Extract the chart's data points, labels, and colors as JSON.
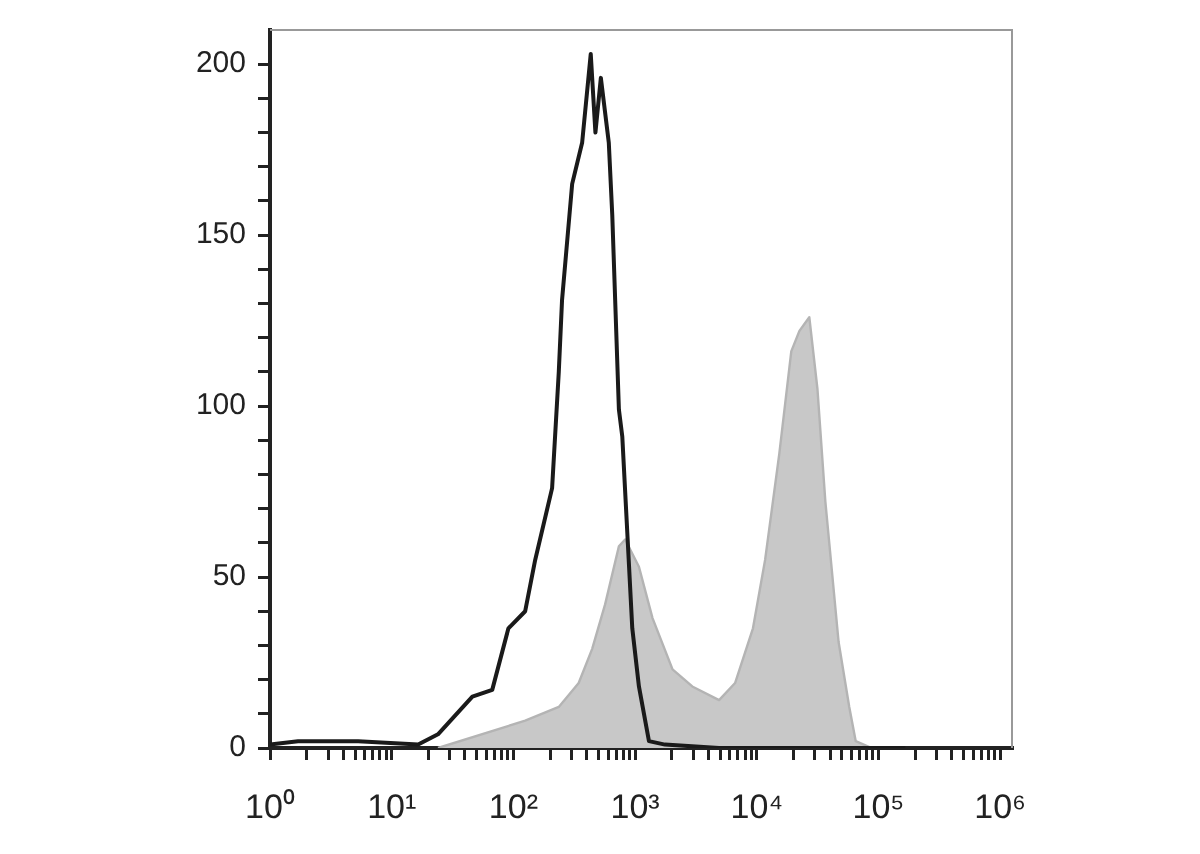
{
  "chart_data": {
    "type": "line",
    "series": [
      {
        "type": "area",
        "color": "#c8c8c8",
        "x": [
          24,
          125,
          236,
          344,
          444,
          567,
          736,
          828,
          1075,
          1390,
          2030,
          2950,
          4900,
          6630,
          9300,
          11700,
          15300,
          19200,
          22400,
          27000,
          31500,
          36600,
          47000,
          57500,
          65000,
          88000
        ],
        "values": [
          0,
          8,
          12,
          19,
          29,
          42,
          59,
          61,
          53,
          38,
          23,
          18,
          14,
          19,
          35,
          55,
          86,
          116,
          122,
          126,
          105,
          72,
          31,
          12,
          2,
          0
        ]
      },
      {
        "type": "line",
        "color": "#1a1a1a",
        "x": [
          1,
          1.7,
          5.3,
          16.5,
          24,
          46,
          67,
          91,
          125,
          151,
          208,
          236,
          251,
          304,
          367,
          432,
          472,
          523,
          608,
          649,
          736,
          785,
          948,
          1075,
          1300,
          1760,
          4900,
          22400,
          166000
        ],
        "values": [
          1,
          2,
          2,
          1,
          4,
          15,
          17,
          35,
          40,
          55,
          76,
          110,
          131,
          165,
          177,
          203,
          180,
          196,
          177,
          156,
          99,
          91,
          35,
          18,
          2,
          1,
          0,
          0,
          0
        ]
      }
    ],
    "log": "x",
    "grid": false,
    "legend": false,
    "marker": "none",
    "line_style": "solid",
    "xlim": [
      1,
      1250000
    ],
    "xticks": [
      {
        "value": 1,
        "label": "10⁰"
      },
      {
        "value": 2,
        "label": null
      },
      {
        "value": 3,
        "label": null
      },
      {
        "value": 4,
        "label": null
      },
      {
        "value": 5,
        "label": null
      },
      {
        "value": 6,
        "label": null
      },
      {
        "value": 7,
        "label": null
      },
      {
        "value": 8,
        "label": null
      },
      {
        "value": 9,
        "label": null
      },
      {
        "value": 10,
        "label": "10¹"
      },
      {
        "value": 20,
        "label": null
      },
      {
        "value": 30,
        "label": null
      },
      {
        "value": 40,
        "label": null
      },
      {
        "value": 50,
        "label": null
      },
      {
        "value": 60,
        "label": null
      },
      {
        "value": 70,
        "label": null
      },
      {
        "value": 80,
        "label": null
      },
      {
        "value": 90,
        "label": null
      },
      {
        "value": 100,
        "label": "10²"
      },
      {
        "value": 200,
        "label": null
      },
      {
        "value": 300,
        "label": null
      },
      {
        "value": 400,
        "label": null
      },
      {
        "value": 500,
        "label": null
      },
      {
        "value": 600,
        "label": null
      },
      {
        "value": 700,
        "label": null
      },
      {
        "value": 800,
        "label": null
      },
      {
        "value": 900,
        "label": null
      },
      {
        "value": 1000,
        "label": "10³"
      },
      {
        "value": 2000,
        "label": null
      },
      {
        "value": 3000,
        "label": null
      },
      {
        "value": 4000,
        "label": null
      },
      {
        "value": 5000,
        "label": null
      },
      {
        "value": 6000,
        "label": null
      },
      {
        "value": 7000,
        "label": null
      },
      {
        "value": 8000,
        "label": null
      },
      {
        "value": 9000,
        "label": null
      },
      {
        "value": 10000,
        "label": "10⁴"
      },
      {
        "value": 20000,
        "label": null
      },
      {
        "value": 30000,
        "label": null
      },
      {
        "value": 40000,
        "label": null
      },
      {
        "value": 50000,
        "label": null
      },
      {
        "value": 60000,
        "label": null
      },
      {
        "value": 70000,
        "label": null
      },
      {
        "value": 80000,
        "label": null
      },
      {
        "value": 90000,
        "label": null
      },
      {
        "value": 100000,
        "label": "10⁵"
      },
      {
        "value": 200000,
        "label": null
      },
      {
        "value": 300000,
        "label": null
      },
      {
        "value": 400000,
        "label": null
      },
      {
        "value": 500000,
        "label": null
      },
      {
        "value": 600000,
        "label": null
      },
      {
        "value": 700000,
        "label": null
      },
      {
        "value": 800000,
        "label": null
      },
      {
        "value": 900000,
        "label": null
      },
      {
        "value": 1000000,
        "label": "10⁶"
      }
    ],
    "ylim": [
      0,
      210
    ],
    "yticks": [
      0,
      {
        "value": 10,
        "label": null
      },
      {
        "value": 20,
        "label": null
      },
      {
        "value": 30,
        "label": null
      },
      {
        "value": 40,
        "label": null
      },
      50,
      {
        "value": 60,
        "label": null
      },
      {
        "value": 70,
        "label": null
      },
      {
        "value": 80,
        "label": null
      },
      {
        "value": 90,
        "label": null
      },
      100,
      {
        "value": 110,
        "label": null
      },
      {
        "value": 120,
        "label": null
      },
      {
        "value": 130,
        "label": null
      },
      {
        "value": 140,
        "label": null
      },
      150,
      {
        "value": 160,
        "label": null
      },
      {
        "value": 170,
        "label": null
      },
      {
        "value": 180,
        "label": null
      },
      {
        "value": 190,
        "label": null
      },
      200
    ]
  }
}
